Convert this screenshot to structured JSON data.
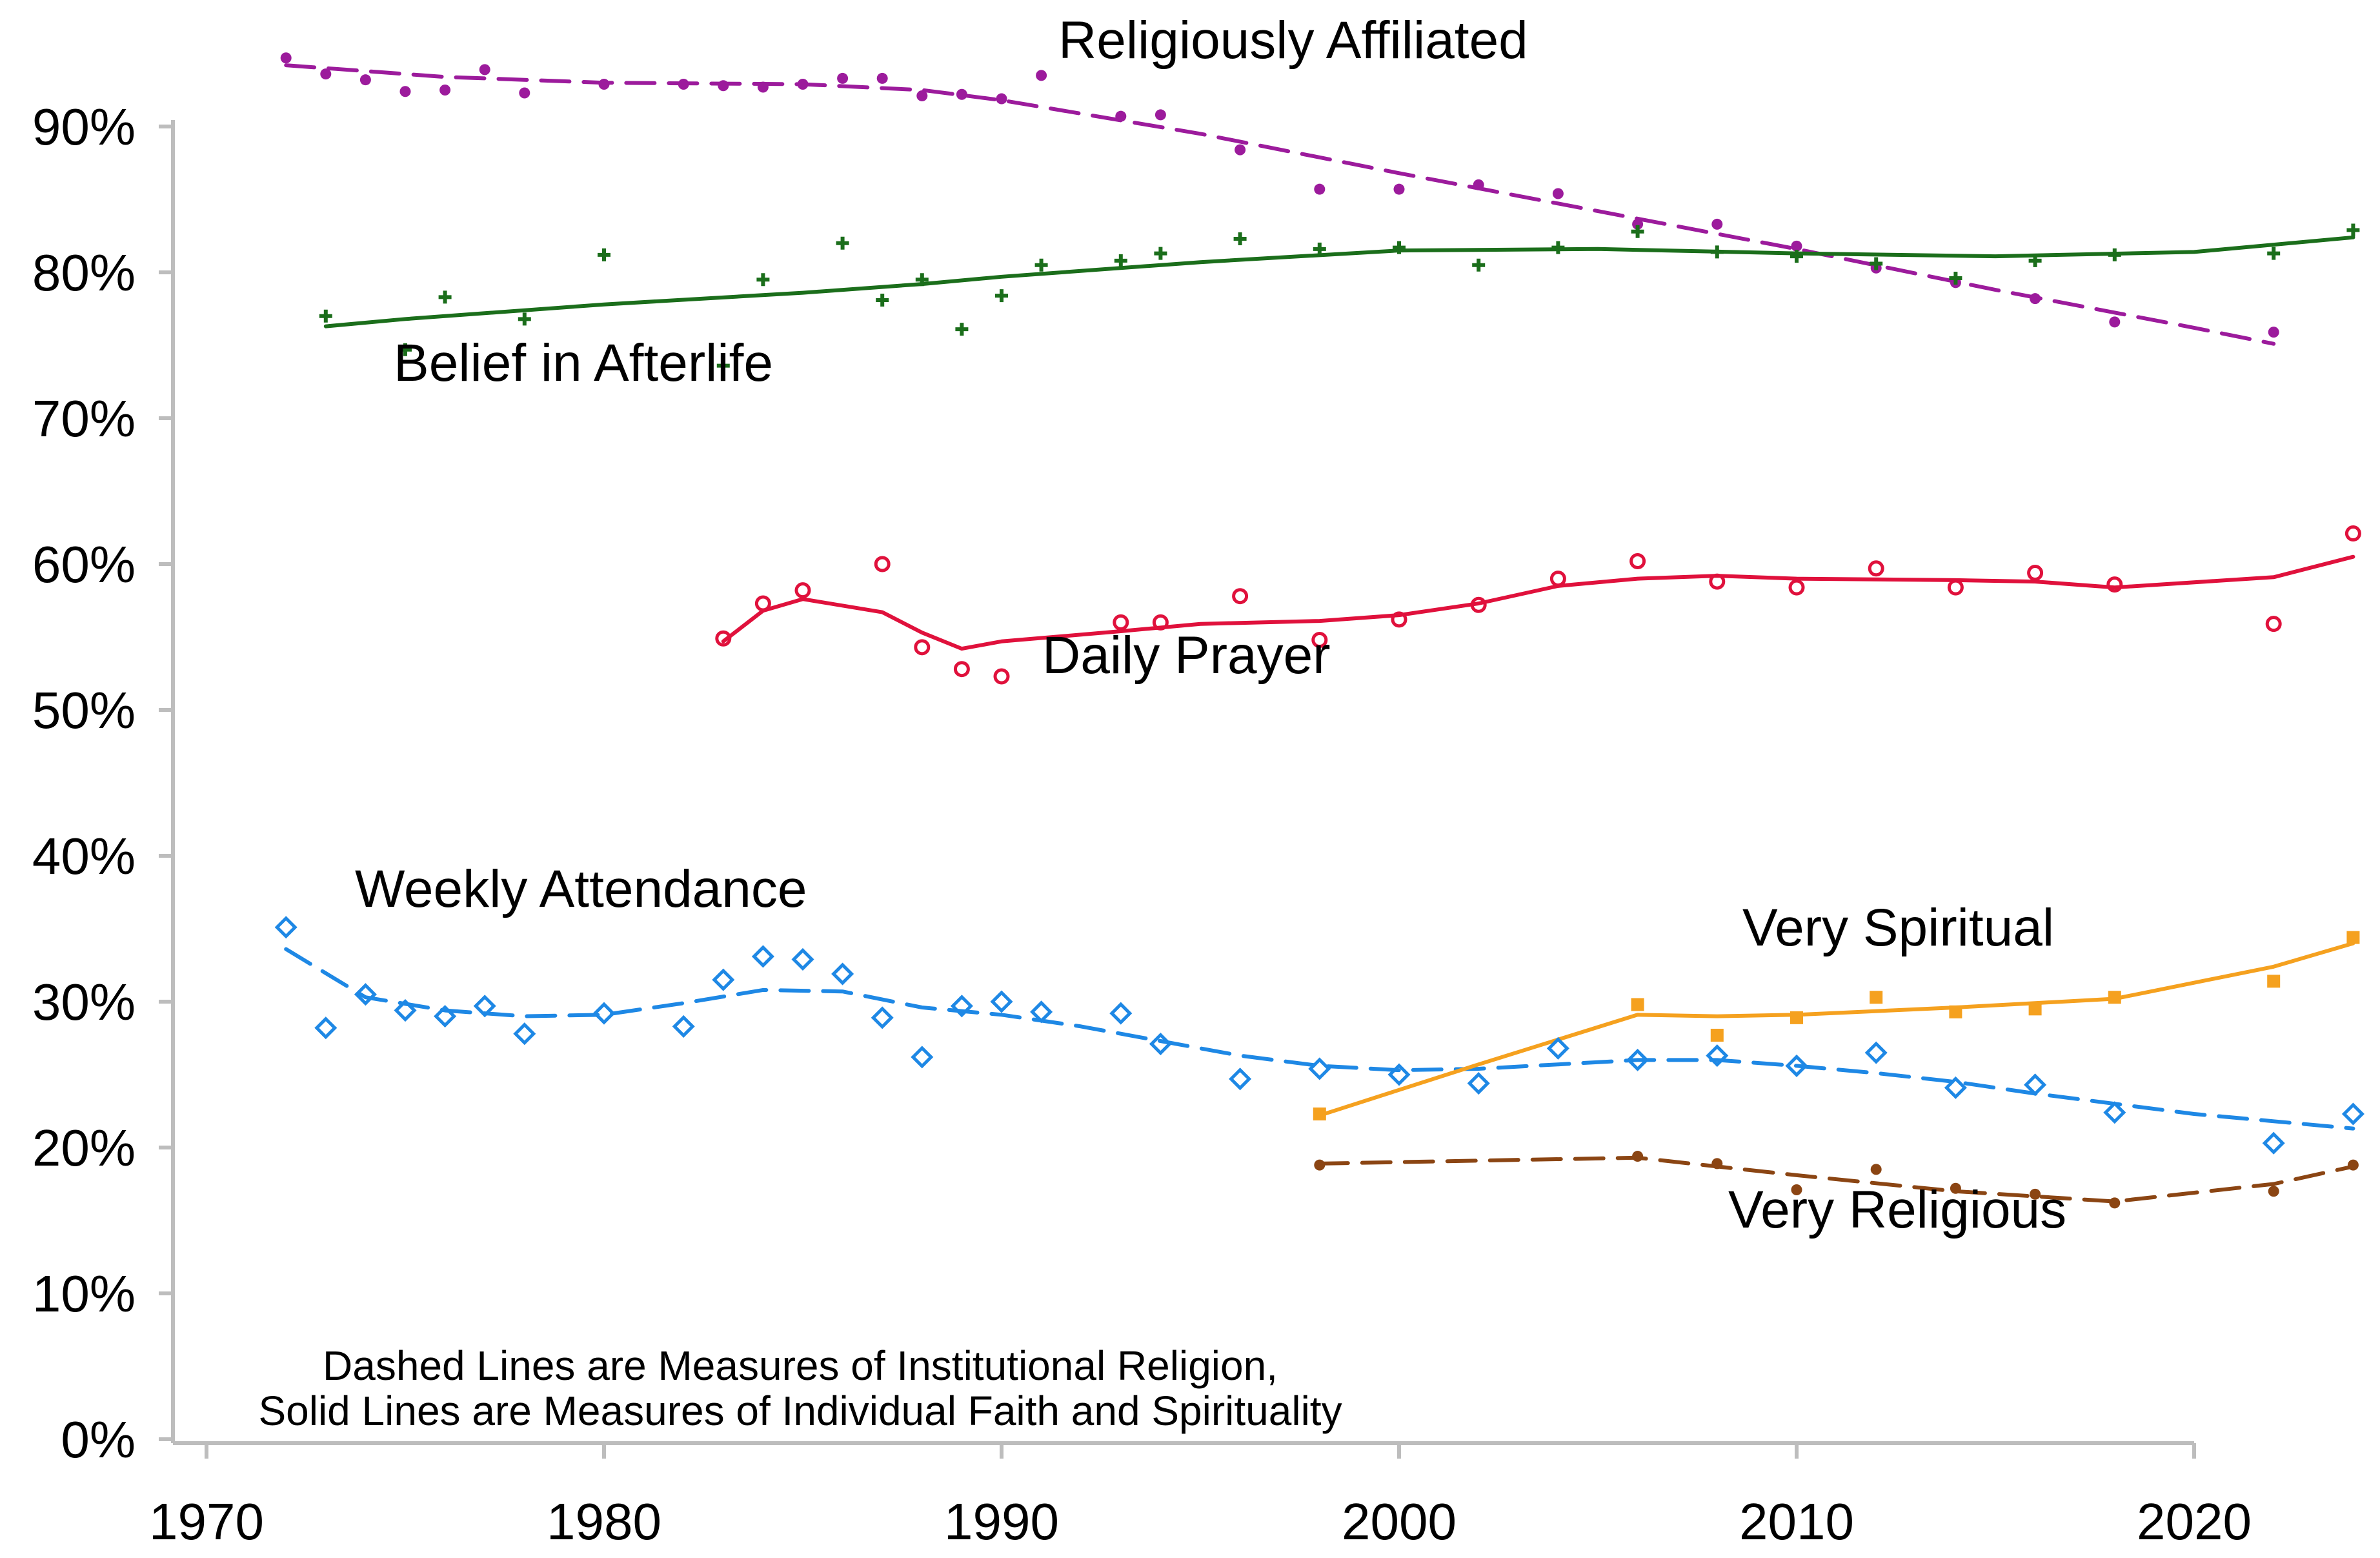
{
  "chart_data": {
    "type": "line",
    "title": "",
    "xlabel": "",
    "ylabel": "",
    "xlim": [
      1970,
      2024.8
    ],
    "ylim": [
      0,
      95
    ],
    "x_ticks": [
      1970,
      1980,
      1990,
      2000,
      2010,
      2020
    ],
    "y_ticks": [
      0,
      10,
      20,
      30,
      40,
      50,
      60,
      70,
      80,
      90
    ],
    "y_tick_labels": [
      "0%",
      "10%",
      "20%",
      "30%",
      "40%",
      "50%",
      "60%",
      "70%",
      "80%",
      "90%"
    ],
    "grid": false,
    "legend": "none",
    "note": {
      "line1": "Dashed Lines are Measures of Institutional Religion,",
      "line2": "Solid Lines are Measures of Individual Faith and Spirituality"
    },
    "series": [
      {
        "name": "Religiously Affiliated",
        "color": "#9c1b9c",
        "line_style": "dashed",
        "marker": "dot",
        "points": [
          [
            1972,
            94.7
          ],
          [
            1973,
            93.6
          ],
          [
            1974,
            93.2
          ],
          [
            1975,
            92.4
          ],
          [
            1976,
            92.5
          ],
          [
            1977,
            93.9
          ],
          [
            1978,
            92.3
          ],
          [
            1980,
            92.9
          ],
          [
            1982,
            92.9
          ],
          [
            1983,
            92.8
          ],
          [
            1984,
            92.7
          ],
          [
            1985,
            92.9
          ],
          [
            1986,
            93.3
          ],
          [
            1987,
            93.3
          ],
          [
            1988,
            92.1
          ],
          [
            1989,
            92.2
          ],
          [
            1990,
            91.9
          ],
          [
            1991,
            93.5
          ],
          [
            1993,
            90.7
          ],
          [
            1994,
            90.8
          ],
          [
            1996,
            88.4
          ],
          [
            1998,
            85.7
          ],
          [
            2000,
            85.7
          ],
          [
            2002,
            86.0
          ],
          [
            2004,
            85.4
          ],
          [
            2006,
            83.3
          ],
          [
            2008,
            83.3
          ],
          [
            2010,
            81.8
          ],
          [
            2012,
            80.3
          ],
          [
            2014,
            79.3
          ],
          [
            2016,
            78.2
          ],
          [
            2018,
            76.6
          ],
          [
            2022,
            75.9
          ]
        ],
        "trend": [
          [
            1972,
            94.2
          ],
          [
            1976,
            93.4
          ],
          [
            1980,
            93.0
          ],
          [
            1985,
            92.9
          ],
          [
            1988,
            92.5
          ],
          [
            1990,
            91.8
          ],
          [
            1995,
            89.5
          ],
          [
            2000,
            86.8
          ],
          [
            2005,
            84.2
          ],
          [
            2010,
            81.6
          ],
          [
            2015,
            78.8
          ],
          [
            2020,
            76.2
          ],
          [
            2022,
            75.1
          ]
        ]
      },
      {
        "name": "Belief in Afterlife",
        "color": "#1b6e1b",
        "line_style": "solid",
        "marker": "plus",
        "points": [
          [
            1973,
            77.0
          ],
          [
            1975,
            74.7
          ],
          [
            1976,
            78.3
          ],
          [
            1978,
            76.8
          ],
          [
            1980,
            81.2
          ],
          [
            1983,
            73.6
          ],
          [
            1984,
            79.5
          ],
          [
            1986,
            82.0
          ],
          [
            1987,
            78.1
          ],
          [
            1988,
            79.5
          ],
          [
            1989,
            76.1
          ],
          [
            1990,
            78.4
          ],
          [
            1991,
            80.5
          ],
          [
            1993,
            80.8
          ],
          [
            1994,
            81.3
          ],
          [
            1996,
            82.3
          ],
          [
            1998,
            81.6
          ],
          [
            2000,
            81.7
          ],
          [
            2002,
            80.5
          ],
          [
            2004,
            81.7
          ],
          [
            2006,
            82.8
          ],
          [
            2008,
            81.4
          ],
          [
            2010,
            81.1
          ],
          [
            2012,
            80.6
          ],
          [
            2014,
            79.6
          ],
          [
            2016,
            80.8
          ],
          [
            2018,
            81.2
          ],
          [
            2022,
            81.3
          ],
          [
            2024,
            82.9
          ]
        ],
        "trend": [
          [
            1973,
            76.3
          ],
          [
            1975,
            76.8
          ],
          [
            1980,
            77.8
          ],
          [
            1985,
            78.6
          ],
          [
            1988,
            79.2
          ],
          [
            1990,
            79.7
          ],
          [
            1995,
            80.7
          ],
          [
            2000,
            81.5
          ],
          [
            2005,
            81.6
          ],
          [
            2010,
            81.3
          ],
          [
            2015,
            81.1
          ],
          [
            2020,
            81.4
          ],
          [
            2024,
            82.4
          ]
        ]
      },
      {
        "name": "Daily Prayer",
        "color": "#e0113c",
        "line_style": "solid",
        "marker": "circle",
        "points": [
          [
            1983,
            54.9
          ],
          [
            1984,
            57.3
          ],
          [
            1985,
            58.2
          ],
          [
            1987,
            60.0
          ],
          [
            1988,
            54.3
          ],
          [
            1989,
            52.8
          ],
          [
            1990,
            52.3
          ],
          [
            1993,
            56.0
          ],
          [
            1994,
            56.0
          ],
          [
            1996,
            57.8
          ],
          [
            1998,
            54.8
          ],
          [
            2000,
            56.2
          ],
          [
            2002,
            57.2
          ],
          [
            2004,
            59.0
          ],
          [
            2006,
            60.2
          ],
          [
            2008,
            58.8
          ],
          [
            2010,
            58.4
          ],
          [
            2012,
            59.7
          ],
          [
            2014,
            58.4
          ],
          [
            2016,
            59.4
          ],
          [
            2018,
            58.6
          ],
          [
            2022,
            55.9
          ],
          [
            2024,
            62.1
          ]
        ],
        "trend": [
          [
            1983,
            54.7
          ],
          [
            1984,
            56.8
          ],
          [
            1985,
            57.6
          ],
          [
            1987,
            56.7
          ],
          [
            1988,
            55.3
          ],
          [
            1989,
            54.2
          ],
          [
            1990,
            54.7
          ],
          [
            1993,
            55.4
          ],
          [
            1995,
            55.9
          ],
          [
            1998,
            56.1
          ],
          [
            2000,
            56.5
          ],
          [
            2002,
            57.3
          ],
          [
            2004,
            58.5
          ],
          [
            2006,
            59.0
          ],
          [
            2008,
            59.2
          ],
          [
            2010,
            59.0
          ],
          [
            2014,
            58.9
          ],
          [
            2016,
            58.8
          ],
          [
            2018,
            58.4
          ],
          [
            2022,
            59.1
          ],
          [
            2024,
            60.5
          ]
        ]
      },
      {
        "name": "Weekly Attendance",
        "color": "#1e88e5",
        "line_style": "dashed",
        "marker": "diamond",
        "points": [
          [
            1972,
            35.1
          ],
          [
            1973,
            28.2
          ],
          [
            1974,
            30.5
          ],
          [
            1975,
            29.4
          ],
          [
            1976,
            29.0
          ],
          [
            1977,
            29.7
          ],
          [
            1978,
            27.8
          ],
          [
            1980,
            29.2
          ],
          [
            1982,
            28.3
          ],
          [
            1983,
            31.5
          ],
          [
            1984,
            33.1
          ],
          [
            1985,
            32.9
          ],
          [
            1986,
            31.9
          ],
          [
            1987,
            28.9
          ],
          [
            1988,
            26.2
          ],
          [
            1989,
            29.7
          ],
          [
            1990,
            30.0
          ],
          [
            1991,
            29.3
          ],
          [
            1993,
            29.2
          ],
          [
            1994,
            27.1
          ],
          [
            1996,
            24.7
          ],
          [
            1998,
            25.4
          ],
          [
            2000,
            25.0
          ],
          [
            2002,
            24.4
          ],
          [
            2004,
            26.8
          ],
          [
            2006,
            26.0
          ],
          [
            2008,
            26.3
          ],
          [
            2010,
            25.6
          ],
          [
            2012,
            26.5
          ],
          [
            2014,
            24.1
          ],
          [
            2016,
            24.3
          ],
          [
            2018,
            22.4
          ],
          [
            2022,
            20.3
          ],
          [
            2024,
            22.3
          ]
        ],
        "trend": [
          [
            1972,
            33.6
          ],
          [
            1974,
            30.3
          ],
          [
            1976,
            29.4
          ],
          [
            1978,
            29.0
          ],
          [
            1980,
            29.1
          ],
          [
            1982,
            29.9
          ],
          [
            1984,
            30.8
          ],
          [
            1986,
            30.7
          ],
          [
            1988,
            29.6
          ],
          [
            1990,
            29.1
          ],
          [
            1992,
            28.3
          ],
          [
            1994,
            27.3
          ],
          [
            1996,
            26.3
          ],
          [
            1998,
            25.6
          ],
          [
            2000,
            25.3
          ],
          [
            2002,
            25.4
          ],
          [
            2004,
            25.7
          ],
          [
            2006,
            26.0
          ],
          [
            2008,
            26.0
          ],
          [
            2010,
            25.6
          ],
          [
            2012,
            25.1
          ],
          [
            2014,
            24.5
          ],
          [
            2016,
            23.7
          ],
          [
            2018,
            23.0
          ],
          [
            2020,
            22.3
          ],
          [
            2022,
            21.8
          ],
          [
            2024,
            21.3
          ]
        ]
      },
      {
        "name": "Very Spiritual",
        "color": "#f5a11f",
        "line_style": "solid",
        "marker": "square",
        "points": [
          [
            1998,
            22.3
          ],
          [
            2006,
            29.8
          ],
          [
            2008,
            27.7
          ],
          [
            2010,
            28.9
          ],
          [
            2012,
            30.3
          ],
          [
            2014,
            29.3
          ],
          [
            2016,
            29.5
          ],
          [
            2018,
            30.3
          ],
          [
            2022,
            31.4
          ],
          [
            2024,
            34.4
          ]
        ],
        "trend": [
          [
            1998,
            22.2
          ],
          [
            2002,
            25.7
          ],
          [
            2006,
            29.1
          ],
          [
            2008,
            29.0
          ],
          [
            2010,
            29.1
          ],
          [
            2014,
            29.6
          ],
          [
            2018,
            30.2
          ],
          [
            2022,
            32.4
          ],
          [
            2024,
            34.0
          ]
        ]
      },
      {
        "name": "Very Religious",
        "color": "#8b4513",
        "line_style": "dashed",
        "marker": "dot",
        "points": [
          [
            1998,
            18.8
          ],
          [
            2006,
            19.4
          ],
          [
            2008,
            18.9
          ],
          [
            2010,
            17.1
          ],
          [
            2012,
            18.5
          ],
          [
            2014,
            17.2
          ],
          [
            2016,
            16.8
          ],
          [
            2018,
            16.2
          ],
          [
            2022,
            17.0
          ],
          [
            2024,
            18.8
          ]
        ],
        "trend": [
          [
            1998,
            18.9
          ],
          [
            2002,
            19.1
          ],
          [
            2006,
            19.3
          ],
          [
            2008,
            18.7
          ],
          [
            2010,
            18.1
          ],
          [
            2014,
            17.0
          ],
          [
            2018,
            16.3
          ],
          [
            2022,
            17.5
          ],
          [
            2024,
            18.7
          ]
        ]
      }
    ]
  }
}
